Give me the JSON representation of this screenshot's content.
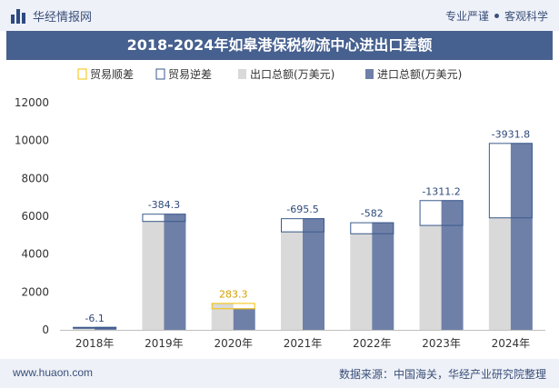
{
  "header": {
    "brand": "华经情报网",
    "tag1": "专业严谨",
    "tag2": "客观科学"
  },
  "footer": {
    "url": "www.huaon.com",
    "source": "数据来源：中国海关，华经产业研究院整理"
  },
  "colors": {
    "export": "#d9d9d9",
    "import": "#6f80a8",
    "surplus": "#f5c000",
    "deficit": "#3a5a8c",
    "title_bg": "#46608f"
  },
  "chart_data": {
    "type": "bar",
    "title": "2018-2024年如皋港保税物流中心进出口差额",
    "categories": [
      "2018年",
      "2019年",
      "2020年",
      "2021年",
      "2022年",
      "2023年",
      "2024年"
    ],
    "series": [
      {
        "name": "出口总额(万美元)",
        "values": [
          150,
          5750,
          1420,
          5200,
          5100,
          5540,
          5940
        ]
      },
      {
        "name": "进口总额(万美元)",
        "values": [
          156,
          6134,
          1137,
          5896,
          5682,
          6851,
          9872
        ]
      }
    ],
    "balance": {
      "labels": [
        "-6.1",
        "-384.3",
        "283.3",
        "-695.5",
        "-582",
        "-1311.2",
        "-3931.8"
      ],
      "values": [
        -6.1,
        -384.3,
        283.3,
        -695.5,
        -582,
        -1311.2,
        -3931.8
      ]
    },
    "legend": [
      "贸易顺差",
      "贸易逆差",
      "出口总额(万美元)",
      "进口总额(万美元)"
    ],
    "legend_position": "top",
    "yticks": [
      "0",
      "2000",
      "4000",
      "6000",
      "8000",
      "10000",
      "12000"
    ],
    "ylim": [
      0,
      12000
    ],
    "grid": false,
    "xlabel": "",
    "ylabel": ""
  }
}
